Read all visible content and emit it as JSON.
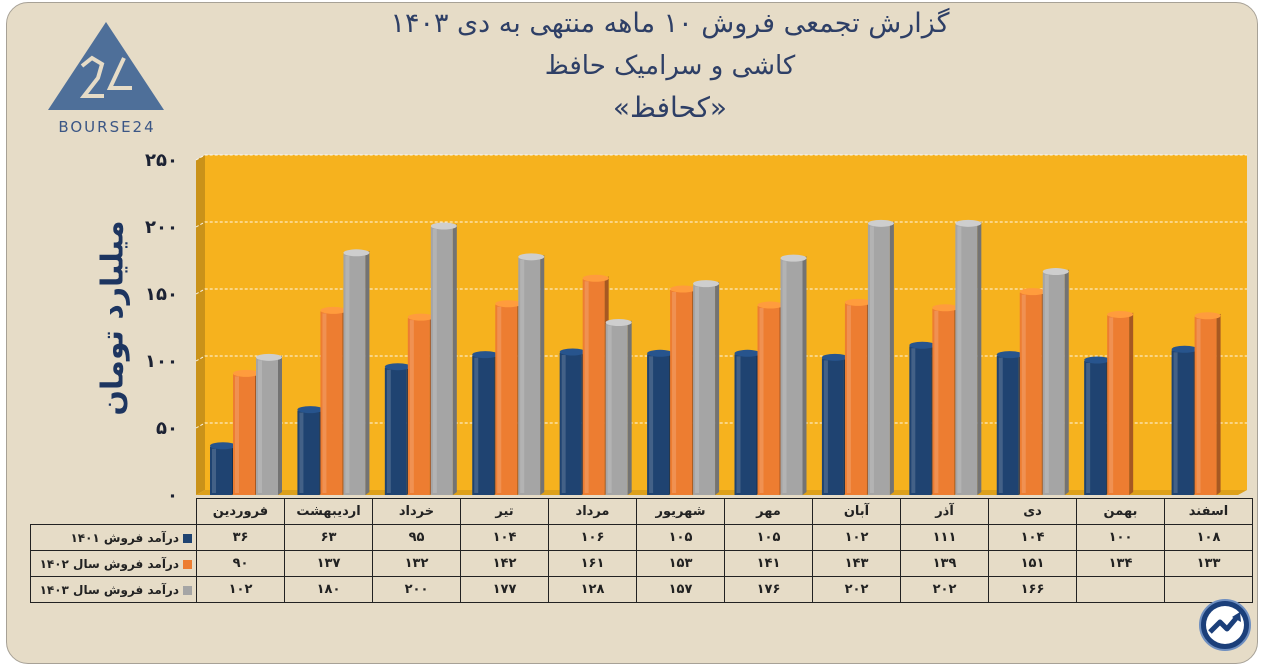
{
  "title": {
    "line1": "گزارش تجمعی فروش ۱۰ ماهه منتهی به دی ۱۴۰۳",
    "line2": "کاشی و سرامیک حافظ",
    "line3": "«کحافظ»"
  },
  "logo": {
    "text": "BOURSE24",
    "mark": "24"
  },
  "chart_data": {
    "type": "bar",
    "title": "گزارش تجمعی فروش ۱۰ ماهه منتهی به دی ۱۴۰۳ - کاشی و سرامیک حافظ «کحافظ»",
    "xlabel": "",
    "ylabel": "میلیارد تومان",
    "ylim": [
      0,
      250
    ],
    "yticks": [
      0,
      50,
      100,
      150,
      200,
      250
    ],
    "ytick_labels": [
      "۰",
      "۵۰",
      "۱۰۰",
      "۱۵۰",
      "۲۰۰",
      "۲۵۰"
    ],
    "categories": [
      "فروردین",
      "اردیبهشت",
      "خرداد",
      "تیر",
      "مرداد",
      "شهریور",
      "مهر",
      "آبان",
      "آذر",
      "دی",
      "بهمن",
      "اسفند"
    ],
    "series": [
      {
        "name": "درآمد فروش ۱۴۰۱",
        "color": "#1f4371",
        "values": [
          36,
          63,
          95,
          104,
          106,
          105,
          105,
          102,
          111,
          104,
          100,
          108
        ],
        "labels": [
          "۳۶",
          "۶۳",
          "۹۵",
          "۱۰۴",
          "۱۰۶",
          "۱۰۵",
          "۱۰۵",
          "۱۰۲",
          "۱۱۱",
          "۱۰۴",
          "۱۰۰",
          "۱۰۸"
        ]
      },
      {
        "name": "درآمد فروش سال ۱۴۰۲",
        "color": "#ed7d31",
        "values": [
          90,
          137,
          132,
          142,
          161,
          153,
          141,
          143,
          139,
          151,
          134,
          133
        ],
        "labels": [
          "۹۰",
          "۱۳۷",
          "۱۳۲",
          "۱۴۲",
          "۱۶۱",
          "۱۵۳",
          "۱۴۱",
          "۱۴۳",
          "۱۳۹",
          "۱۵۱",
          "۱۳۴",
          "۱۳۳"
        ]
      },
      {
        "name": "درآمد فروش سال ۱۴۰۳",
        "color": "#a5a5a5",
        "values": [
          102,
          180,
          200,
          177,
          128,
          157,
          176,
          202,
          202,
          166,
          null,
          null
        ],
        "labels": [
          "۱۰۲",
          "۱۸۰",
          "۲۰۰",
          "۱۷۷",
          "۱۲۸",
          "۱۵۷",
          "۱۷۶",
          "۲۰۲",
          "۲۰۲",
          "۱۶۶",
          "",
          ""
        ]
      }
    ]
  },
  "colors": {
    "plot_background": "#f6b21e",
    "frame_background": "#e6dcc7",
    "title_text": "#2e3f66",
    "axis_label": "#1d3560"
  }
}
